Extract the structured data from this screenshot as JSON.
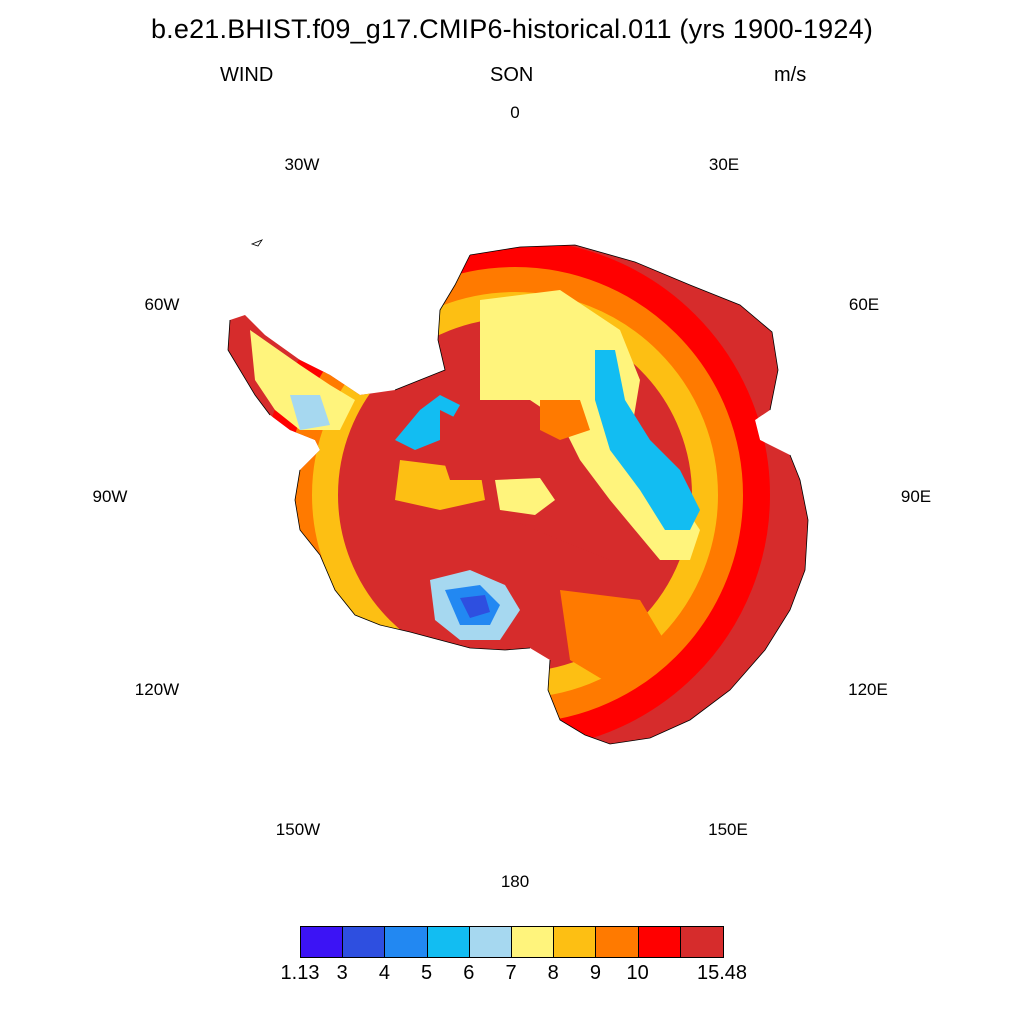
{
  "title": "b.e21.BHIST.f09_g17.CMIP6-historical.011 (yrs 1900-1924)",
  "subtitle": {
    "left": "WIND",
    "center": "SON",
    "right": "m/s"
  },
  "longitude_labels": [
    "0",
    "30E",
    "60E",
    "90E",
    "120E",
    "150E",
    "180",
    "150W",
    "120W",
    "90W",
    "60W",
    "30W"
  ],
  "colorbar": {
    "colors": [
      "#3c13f5",
      "#2e4fe0",
      "#2288f2",
      "#12bdf2",
      "#a6d8f0",
      "#fff47c",
      "#fdbf13",
      "#ff7a00",
      "#ff0000",
      "#d62c2c"
    ],
    "labels": [
      "1.13",
      "3",
      "4",
      "5",
      "6",
      "7",
      "8",
      "9",
      "10",
      "15.48"
    ]
  }
}
